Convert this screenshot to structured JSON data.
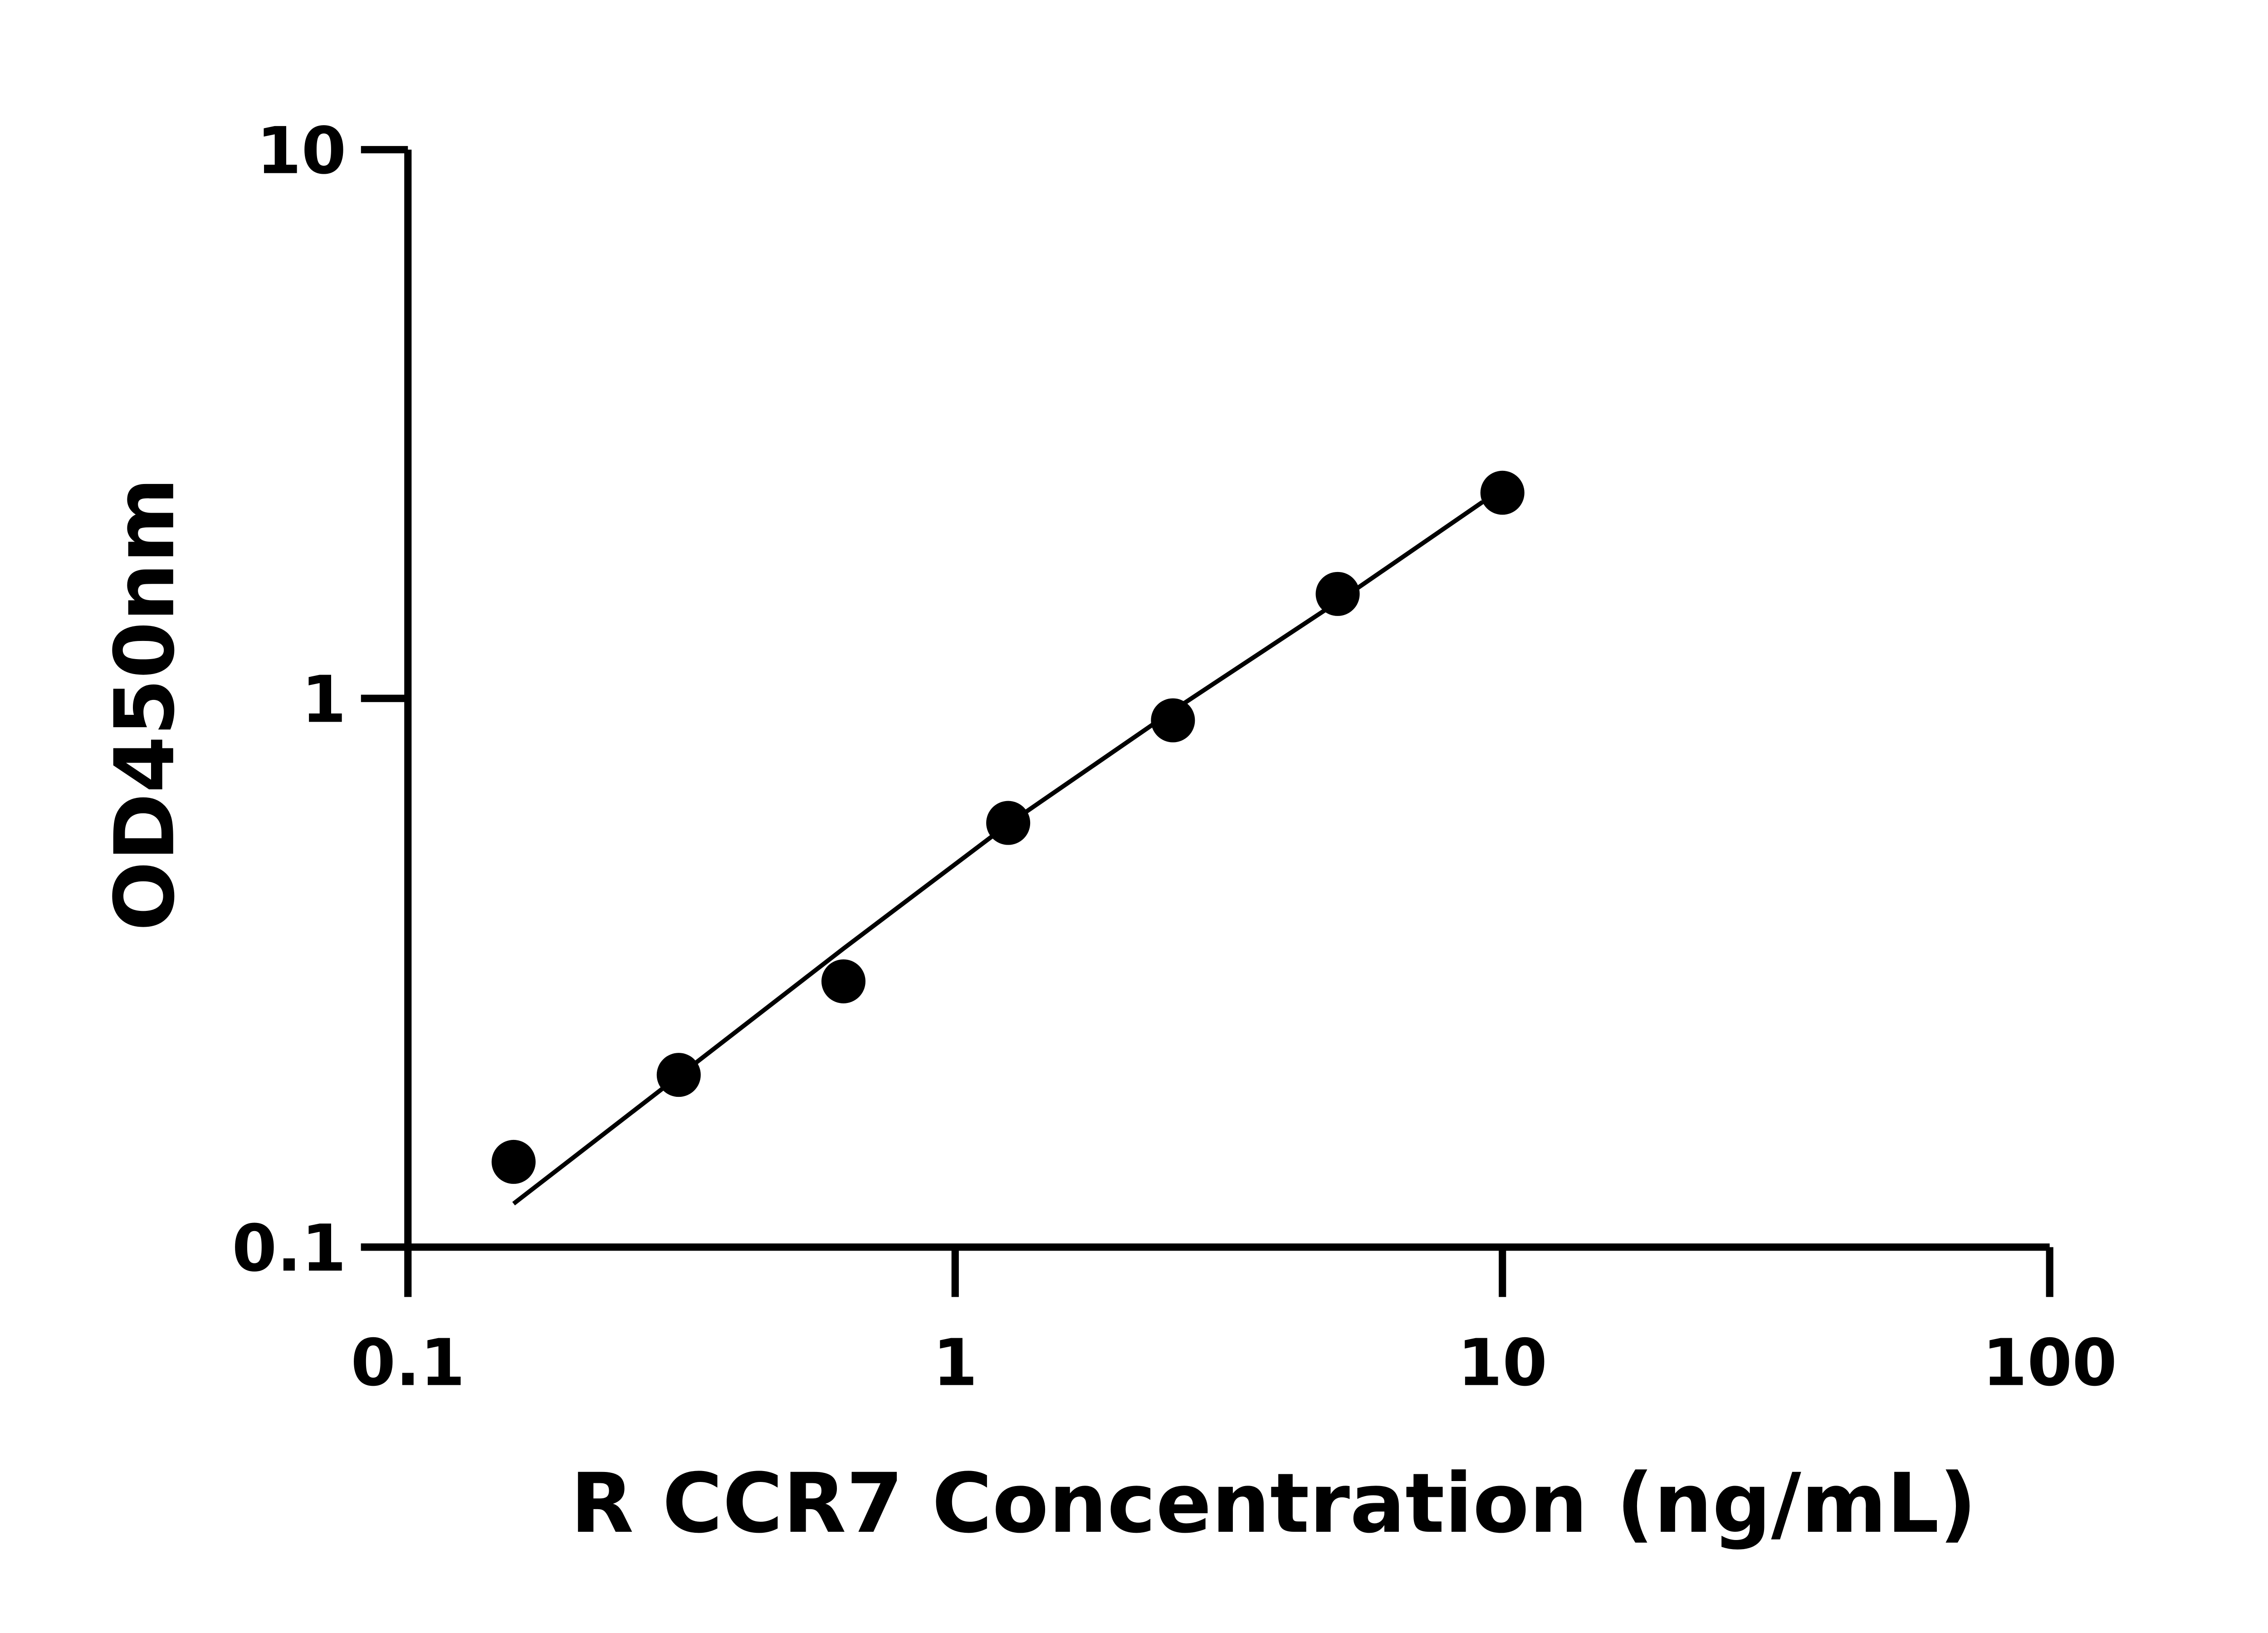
{
  "chart_data": {
    "type": "scatter",
    "title": "",
    "xlabel": "R CCR7 Concentration (ng/mL)",
    "ylabel": "OD450nm",
    "x_scale": "log",
    "y_scale": "log",
    "xlim": [
      0.1,
      100
    ],
    "ylim": [
      0.1,
      10
    ],
    "x_ticks": [
      "0.1",
      "1",
      "10",
      "100"
    ],
    "y_ticks": [
      "0.1",
      "1",
      "10"
    ],
    "grid": false,
    "points": {
      "x": [
        0.156,
        0.3125,
        0.625,
        1.25,
        2.5,
        5,
        10
      ],
      "y": [
        0.143,
        0.206,
        0.305,
        0.593,
        0.912,
        1.55,
        2.37
      ]
    },
    "fit_line": {
      "x": [
        0.156,
        0.3125,
        0.625,
        1.25,
        2.5,
        5,
        9.2
      ],
      "y": [
        0.12,
        0.205,
        0.35,
        0.59,
        0.95,
        1.5,
        2.28
      ]
    },
    "colors": {
      "points": "#000000",
      "line": "#000000"
    }
  }
}
